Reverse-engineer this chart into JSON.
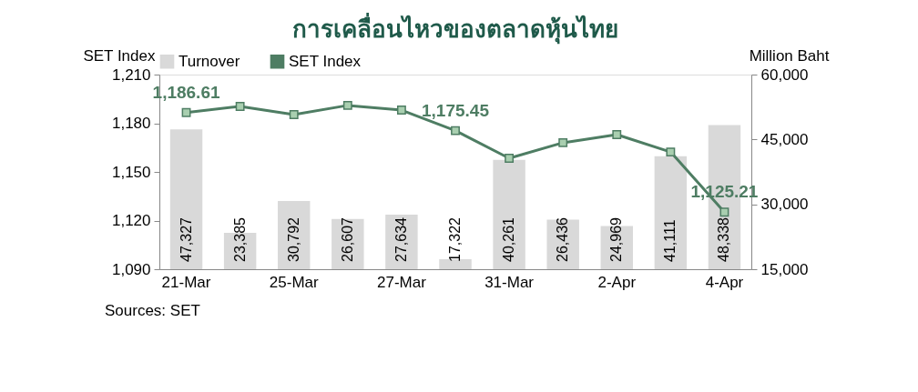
{
  "chart_data": {
    "type": "bar",
    "title": "การเคลื่อนไหวของตลาดหุ้นไทย",
    "categories": [
      "21-Mar",
      null,
      "25-Mar",
      null,
      "27-Mar",
      null,
      "31-Mar",
      null,
      "2-Apr",
      null,
      "4-Apr"
    ],
    "series": [
      {
        "name": "Turnover",
        "axis": "y2",
        "color": "#d9d9d9",
        "values": [
          47327,
          23385,
          30792,
          26607,
          27634,
          17322,
          40261,
          26436,
          24969,
          41111,
          48338
        ],
        "value_labels": [
          "47,327",
          "23,385",
          "30,792",
          "26,607",
          "27,634",
          "17,322",
          "40,261",
          "26,436",
          "24,969",
          "41,111",
          "48,338"
        ]
      },
      {
        "name": "SET Index",
        "type": "line",
        "color": "#4e7d63",
        "values": [
          1186.61,
          1190.4,
          1185.3,
          1191.0,
          1188.1,
          1175.45,
          1158.4,
          1168.0,
          1173.0,
          1162.3,
          1125.21
        ],
        "value_labels": [
          "1,186.61",
          null,
          null,
          null,
          null,
          "1,175.45",
          null,
          null,
          null,
          null,
          "1,125.21"
        ]
      }
    ],
    "ylabel": "SET Index",
    "y2label": "Million Baht",
    "ylim": [
      1090,
      1210
    ],
    "yticks": [
      {
        "value": 1090,
        "label": "1,090"
      },
      {
        "value": 1120,
        "label": "1,120"
      },
      {
        "value": 1150,
        "label": "1,150"
      },
      {
        "value": 1180,
        "label": "1,180"
      },
      {
        "value": 1210,
        "label": "1,210"
      }
    ],
    "y2lim": [
      15000,
      60000
    ],
    "y2ticks": [
      {
        "value": 15000,
        "label": "15,000"
      },
      {
        "value": 30000,
        "label": "30,000"
      },
      {
        "value": 45000,
        "label": "45,000"
      },
      {
        "value": 60000,
        "label": "60,000"
      }
    ],
    "annotations": [
      "Sources: SET"
    ],
    "legend": "top",
    "marker": "square",
    "line_style": "solid",
    "grid": false
  }
}
